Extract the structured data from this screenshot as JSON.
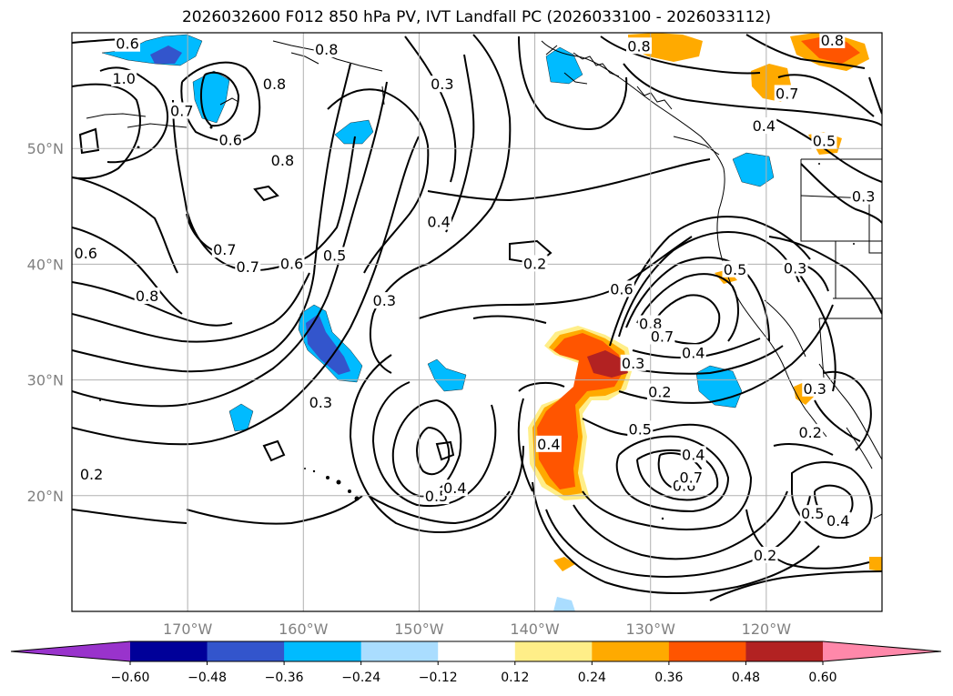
{
  "title": "2026032600 F012 850 hPa PV, IVT Landfall PC (2026033100 - 2026033112)",
  "map": {
    "lon_range": [
      -180,
      -110
    ],
    "lat_range": [
      10,
      60
    ],
    "lon_ticks": [
      {
        "value": -170,
        "label": "170°W"
      },
      {
        "value": -160,
        "label": "160°W"
      },
      {
        "value": -150,
        "label": "150°W"
      },
      {
        "value": -140,
        "label": "140°W"
      },
      {
        "value": -130,
        "label": "130°W"
      },
      {
        "value": -120,
        "label": "120°W"
      }
    ],
    "lat_ticks": [
      {
        "value": 50,
        "label": "50°N"
      },
      {
        "value": 40,
        "label": "40°N"
      },
      {
        "value": 30,
        "label": "30°N"
      },
      {
        "value": 20,
        "label": "20°N"
      }
    ],
    "gridlines": true,
    "contour_labels": [
      {
        "lon": -175.2,
        "lat": 59.0,
        "text": "0.6"
      },
      {
        "lon": -158.0,
        "lat": 58.5,
        "text": "0.8"
      },
      {
        "lon": -162.5,
        "lat": 55.5,
        "text": "0.8"
      },
      {
        "lon": -148.0,
        "lat": 55.5,
        "text": "0.3"
      },
      {
        "lon": -170.5,
        "lat": 53.2,
        "text": "0.7"
      },
      {
        "lon": -166.3,
        "lat": 50.7,
        "text": "0.6"
      },
      {
        "lon": -161.8,
        "lat": 48.9,
        "text": "0.8"
      },
      {
        "lon": -175.5,
        "lat": 56.0,
        "text": "1.0"
      },
      {
        "lon": -166.8,
        "lat": 41.2,
        "text": "0.7"
      },
      {
        "lon": -164.8,
        "lat": 39.7,
        "text": "0.7"
      },
      {
        "lon": -161.0,
        "lat": 40.0,
        "text": "0.6"
      },
      {
        "lon": -157.3,
        "lat": 40.7,
        "text": "0.5"
      },
      {
        "lon": -148.3,
        "lat": 43.6,
        "text": "0.4"
      },
      {
        "lon": -153.0,
        "lat": 36.8,
        "text": "0.3"
      },
      {
        "lon": -178.8,
        "lat": 40.9,
        "text": "0.6"
      },
      {
        "lon": -173.5,
        "lat": 37.2,
        "text": "0.8"
      },
      {
        "lon": -158.5,
        "lat": 28.0,
        "text": "0.3"
      },
      {
        "lon": -140.0,
        "lat": 40.0,
        "text": "0.2"
      },
      {
        "lon": -132.5,
        "lat": 37.8,
        "text": "0.6"
      },
      {
        "lon": -130.0,
        "lat": 34.8,
        "text": "0.8"
      },
      {
        "lon": -129.0,
        "lat": 33.7,
        "text": "0.7"
      },
      {
        "lon": -126.3,
        "lat": 32.3,
        "text": "0.4"
      },
      {
        "lon": -122.7,
        "lat": 39.5,
        "text": "0.5"
      },
      {
        "lon": -117.5,
        "lat": 39.6,
        "text": "0.3"
      },
      {
        "lon": -131.5,
        "lat": 31.4,
        "text": "0.3"
      },
      {
        "lon": -129.2,
        "lat": 28.9,
        "text": "0.2"
      },
      {
        "lon": -115.8,
        "lat": 29.2,
        "text": "0.3"
      },
      {
        "lon": -116.2,
        "lat": 25.4,
        "text": "0.2"
      },
      {
        "lon": -138.8,
        "lat": 24.4,
        "text": "0.4"
      },
      {
        "lon": -130.9,
        "lat": 25.7,
        "text": "0.5"
      },
      {
        "lon": -126.3,
        "lat": 23.5,
        "text": "0.4"
      },
      {
        "lon": -127.1,
        "lat": 20.8,
        "text": "0.6"
      },
      {
        "lon": -126.5,
        "lat": 21.5,
        "text": "0.7"
      },
      {
        "lon": -148.5,
        "lat": 19.9,
        "text": "0.5"
      },
      {
        "lon": -146.9,
        "lat": 20.6,
        "text": "0.4"
      },
      {
        "lon": -178.3,
        "lat": 21.8,
        "text": "0.2"
      },
      {
        "lon": -120.1,
        "lat": 14.8,
        "text": "0.2"
      },
      {
        "lon": -116.0,
        "lat": 18.4,
        "text": "0.5"
      },
      {
        "lon": -113.8,
        "lat": 17.8,
        "text": "0.4"
      },
      {
        "lon": -131.0,
        "lat": 58.8,
        "text": "0.8"
      },
      {
        "lon": -114.3,
        "lat": 59.3,
        "text": "0.8"
      },
      {
        "lon": -118.2,
        "lat": 54.7,
        "text": "0.7"
      },
      {
        "lon": -120.2,
        "lat": 51.9,
        "text": "0.4"
      },
      {
        "lon": -115.0,
        "lat": 50.6,
        "text": "0.5"
      },
      {
        "lon": -111.6,
        "lat": 45.8,
        "text": "0.3"
      }
    ]
  },
  "colorbar": {
    "ticks": [
      "−0.60",
      "−0.48",
      "−0.36",
      "−0.24",
      "−0.12",
      "0.12",
      "0.24",
      "0.36",
      "0.48",
      "0.60"
    ],
    "colors": [
      "#9933cc",
      "#000099",
      "#3355cc",
      "#00bbff",
      "#aaddff",
      "#ffffff",
      "#ffee88",
      "#ffaa00",
      "#ff5500",
      "#b22222",
      "#ff88aa"
    ]
  }
}
